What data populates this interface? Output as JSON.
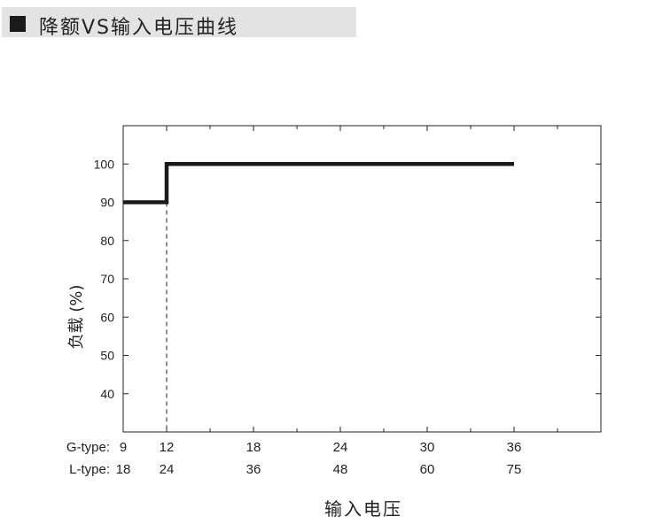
{
  "header": {
    "title": "降额VS输入电压曲线"
  },
  "chart_data": {
    "type": "line",
    "title": "",
    "xlabel": "输入电压",
    "ylabel": "负载 (%)",
    "ylim": [
      30,
      110
    ],
    "yticks": [
      40,
      50,
      60,
      70,
      80,
      90,
      100
    ],
    "x_rows": [
      {
        "label": "G-type:",
        "values": [
          "9",
          "12",
          "18",
          "24",
          "30",
          "36"
        ]
      },
      {
        "label": "L-type:",
        "values": [
          "18",
          "24",
          "36",
          "48",
          "60",
          "75"
        ]
      }
    ],
    "xlim": [
      9,
      42
    ],
    "xtick_minor": [
      15,
      21,
      27,
      33,
      39
    ],
    "series": [
      {
        "x": [
          9,
          12,
          12,
          36
        ],
        "y": [
          90,
          90,
          100,
          100
        ]
      }
    ],
    "reference_line": {
      "x": 12,
      "style": "dashed"
    },
    "grid": false
  },
  "colors": {
    "line": "#1a1a1a",
    "header_bg": "#e3e3e3"
  }
}
